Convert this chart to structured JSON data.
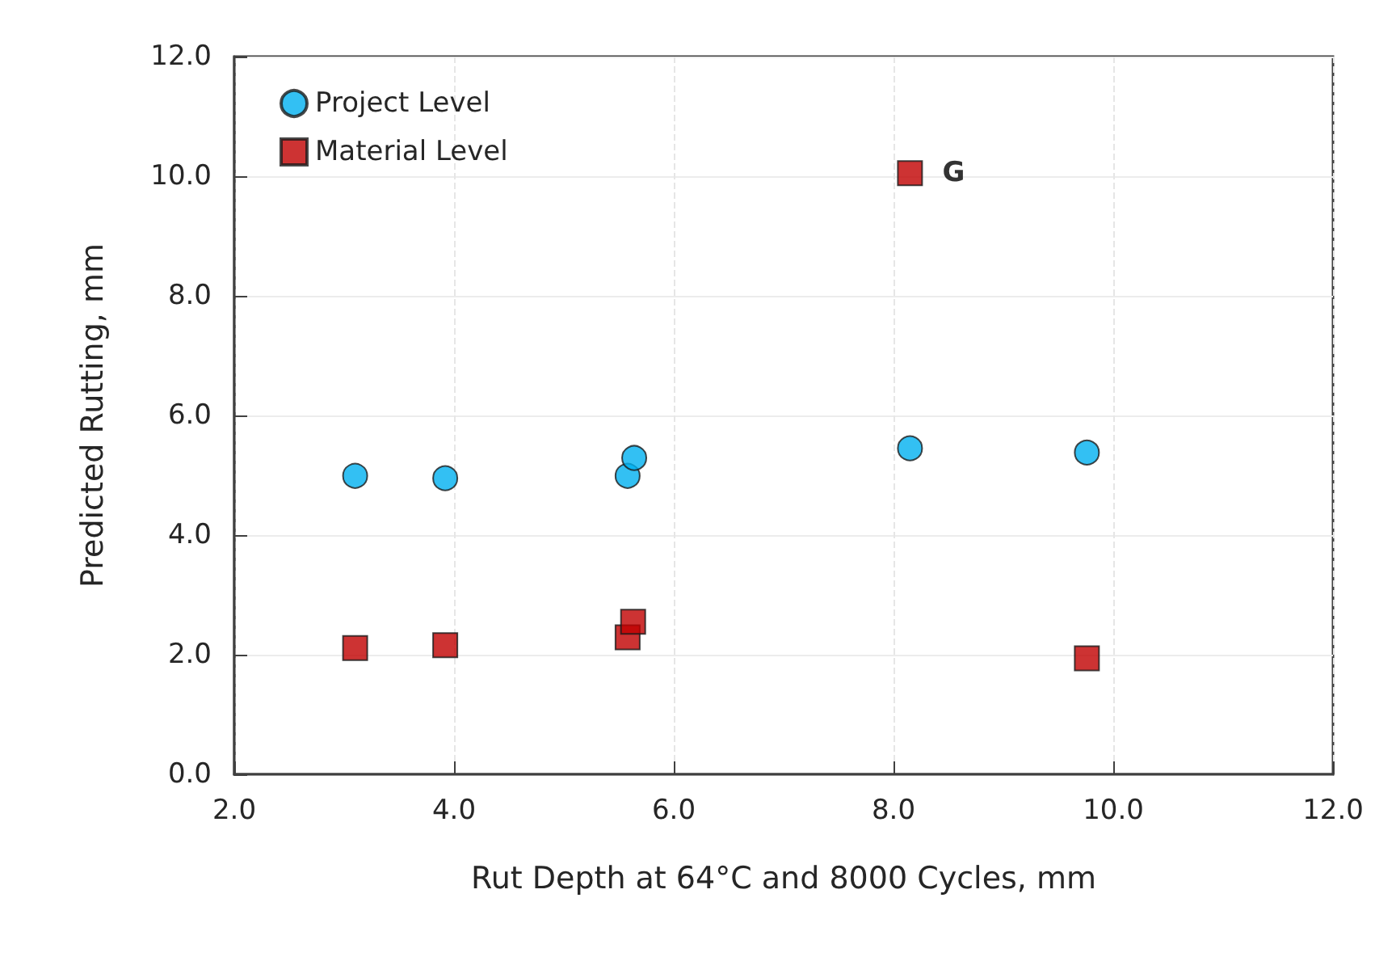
{
  "chart_data": {
    "type": "scatter",
    "xlabel": "Rut Depth at 64°C and 8000 Cycles, mm",
    "ylabel": "Predicted Rutting, mm",
    "xlim": [
      2,
      12
    ],
    "xticks": [
      {
        "value": 2,
        "label": "2.0"
      },
      {
        "value": 4,
        "label": "4.0"
      },
      {
        "value": 6,
        "label": "6.0"
      },
      {
        "value": 8,
        "label": "8.0"
      },
      {
        "value": 10,
        "label": "10.0"
      },
      {
        "value": 12,
        "label": "12.0"
      }
    ],
    "ylim": [
      0,
      12
    ],
    "yticks": [
      {
        "value": 0,
        "label": "0.0"
      },
      {
        "value": 2,
        "label": "2.0"
      },
      {
        "value": 4,
        "label": "4.0"
      },
      {
        "value": 6,
        "label": "6.0"
      },
      {
        "value": 8,
        "label": "8.0"
      },
      {
        "value": 10,
        "label": "10.0"
      },
      {
        "value": 12,
        "label": "12.0"
      }
    ],
    "grid": true,
    "legend": "top left",
    "series": [
      {
        "name": "Project Level",
        "color": "#00b0f0",
        "marker": "circle",
        "x": [
          3.1,
          3.92,
          5.58,
          5.64,
          8.15,
          9.76
        ],
        "values": [
          4.99,
          4.95,
          4.99,
          5.29,
          5.45,
          5.38
        ]
      },
      {
        "name": "Material Level",
        "color": "#c00000",
        "marker": "square",
        "x": [
          3.1,
          3.92,
          5.58,
          5.63,
          8.15,
          9.76
        ],
        "values": [
          2.11,
          2.16,
          2.29,
          2.55,
          10.05,
          1.94
        ]
      }
    ],
    "annotations": [
      {
        "text": "G",
        "x": 8.15,
        "y": 10.05
      }
    ]
  }
}
